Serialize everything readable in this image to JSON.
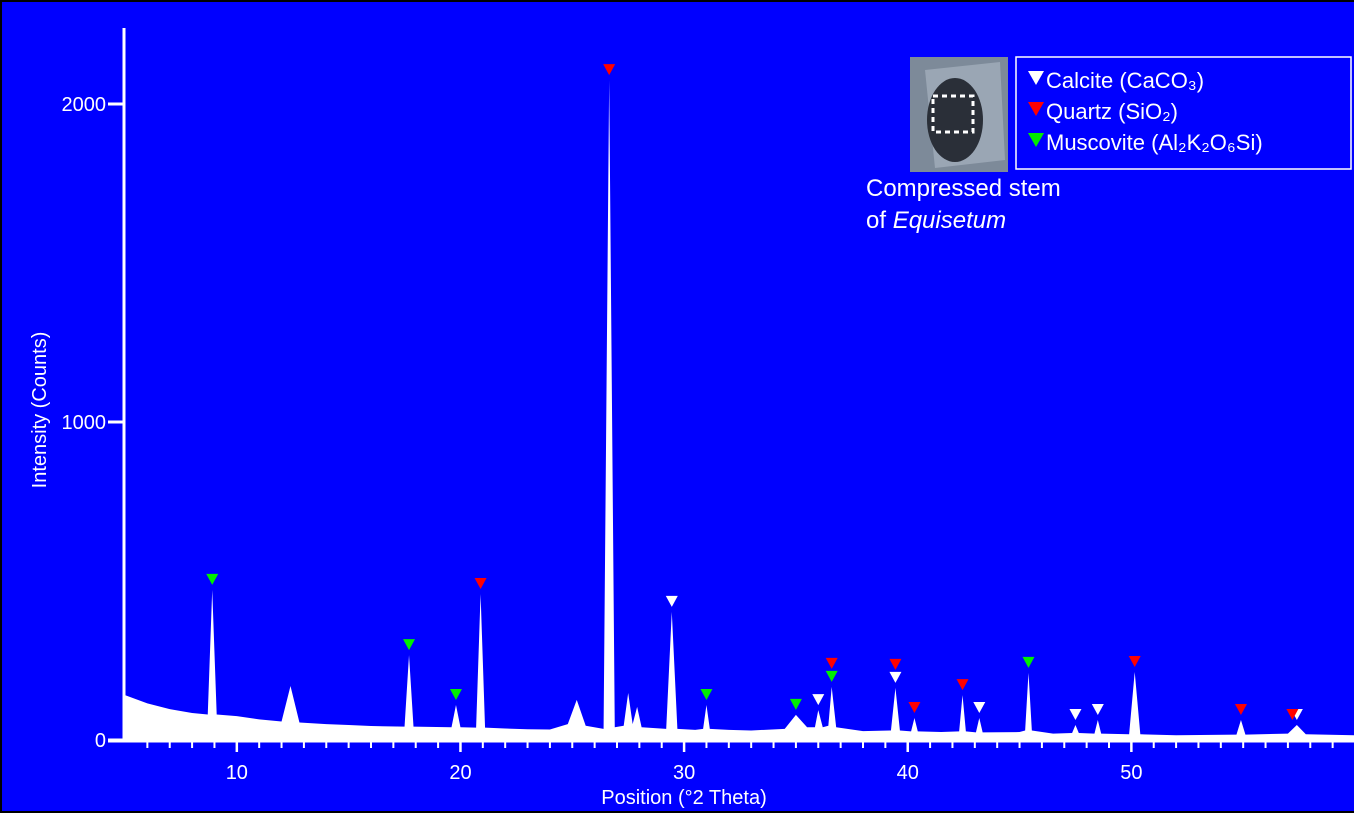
{
  "chart_data": {
    "type": "area",
    "xlabel": "Position (°2 Theta)",
    "ylabel": "Intensity (Counts)",
    "color": "#ffffff",
    "background": "#0000ff",
    "xlim": [
      5,
      60
    ],
    "ylim": [
      0,
      2250
    ],
    "xticks": [
      10,
      20,
      30,
      40,
      50
    ],
    "xminorticks": [
      6,
      7,
      8,
      9,
      11,
      12,
      13,
      14,
      15,
      16,
      17,
      18,
      19,
      21,
      22,
      23,
      24,
      25,
      26,
      27,
      28,
      29,
      31,
      32,
      33,
      34,
      35,
      36,
      37,
      38,
      39,
      41,
      42,
      43,
      44,
      45,
      46,
      47,
      48,
      49,
      51,
      52,
      53,
      54,
      55,
      56,
      57,
      58,
      59
    ],
    "yticks": [
      0,
      1000,
      2000
    ],
    "x": [
      5,
      6,
      7,
      8,
      8.7,
      8.9,
      9.1,
      10,
      11,
      12,
      12.4,
      12.8,
      14,
      15,
      16,
      17.5,
      17.7,
      17.9,
      19.6,
      19.8,
      20,
      20.7,
      20.9,
      21.1,
      22,
      23,
      24,
      24.8,
      25.2,
      25.6,
      26.4,
      26.65,
      26.9,
      27.3,
      27.5,
      27.7,
      27.9,
      28.1,
      29.2,
      29.45,
      29.7,
      30.5,
      30.85,
      31,
      31.15,
      32,
      33,
      34.5,
      35,
      35.5,
      35.85,
      36,
      36.2,
      36.45,
      36.6,
      36.8,
      38,
      39.25,
      39.45,
      39.65,
      40.15,
      40.3,
      40.45,
      41.5,
      42.3,
      42.45,
      42.6,
      43.05,
      43.2,
      43.35,
      45,
      45.25,
      45.4,
      45.55,
      46.5,
      47.35,
      47.5,
      47.65,
      48.35,
      48.5,
      48.65,
      49.9,
      50.15,
      50.4,
      52,
      54.7,
      54.9,
      55.1,
      57,
      57.4,
      57.8,
      60
    ],
    "values": [
      141,
      115,
      97,
      85,
      80,
      472,
      80,
      75,
      65,
      58,
      170,
      55,
      50,
      47,
      44,
      42,
      267,
      42,
      40,
      110,
      40,
      39,
      459,
      39,
      36,
      34,
      33,
      50,
      126,
      45,
      35,
      2075,
      40,
      45,
      148,
      50,
      104,
      40,
      35,
      403,
      35,
      32,
      35,
      110,
      35,
      32,
      30,
      35,
      79,
      40,
      40,
      94,
      40,
      45,
      167,
      40,
      28,
      30,
      164,
      30,
      27,
      69,
      27,
      25,
      27,
      141,
      27,
      24,
      69,
      24,
      25,
      30,
      211,
      30,
      20,
      22,
      47,
      22,
      20,
      63,
      20,
      18,
      214,
      18,
      15,
      17,
      63,
      17,
      20,
      47,
      18,
      15
    ],
    "markers": [
      {
        "name": "Calcite (CaCO₃)",
        "color": "#ffffff",
        "x": [
          29.45,
          36.0,
          39.45,
          43.2,
          47.5,
          48.5,
          57.4
        ],
        "values": [
          403,
          94,
          164,
          69,
          47,
          63,
          47
        ]
      },
      {
        "name": "Quartz (SiO₂)",
        "color": "#ff0000",
        "x": [
          20.9,
          26.65,
          36.6,
          39.45,
          40.3,
          42.45,
          50.15,
          54.9,
          57.2
        ],
        "values": [
          459,
          2075,
          167,
          164,
          69,
          141,
          214,
          63,
          47
        ]
      },
      {
        "name": "Muscovite (Al₂K₂O₆Si)",
        "color": "#00ee00",
        "x": [
          8.9,
          17.7,
          19.8,
          31.0,
          35.0,
          36.6,
          45.4
        ],
        "values": [
          472,
          267,
          110,
          110,
          79,
          167,
          211
        ]
      }
    ],
    "inset_caption": {
      "line1": "Compressed stem",
      "line2": "of",
      "line2_italic": "Equisetum"
    }
  }
}
